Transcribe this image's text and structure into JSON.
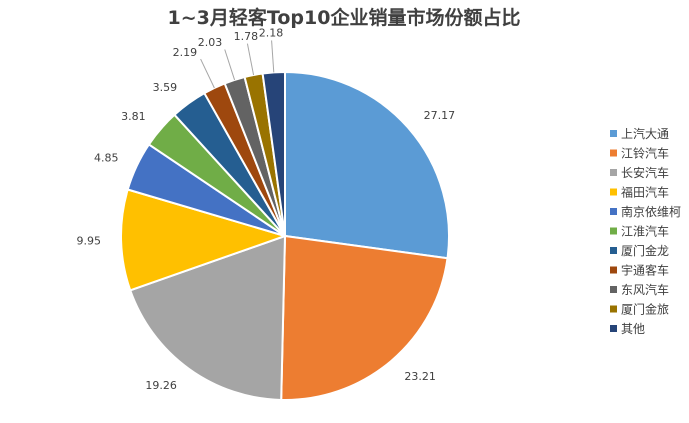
{
  "chart_data": {
    "type": "pie",
    "title": "1~3月轻客Top10企业销量市场份额占比",
    "legend_position": "right",
    "categories": [
      "上汽大通",
      "江铃汽车",
      "长安汽车",
      "福田汽车",
      "南京依维柯",
      "江淮汽车",
      "厦门金龙",
      "宇通客车",
      "东风汽车",
      "厦门金旅",
      "其他"
    ],
    "values": [
      27.17,
      23.21,
      19.26,
      9.95,
      4.85,
      3.81,
      3.59,
      2.19,
      2.03,
      1.78,
      2.18
    ],
    "labels": [
      "27.17",
      "23.21",
      "19.26",
      "9.95",
      "4.85",
      "3.81",
      "3.59",
      "2.19",
      "2.03",
      "1.78",
      "2.18"
    ],
    "colors": [
      "#5B9BD5",
      "#ED7D31",
      "#A5A5A5",
      "#FFC000",
      "#4472C4",
      "#70AD47",
      "#255E91",
      "#9E480E",
      "#636363",
      "#997300",
      "#264478"
    ]
  }
}
